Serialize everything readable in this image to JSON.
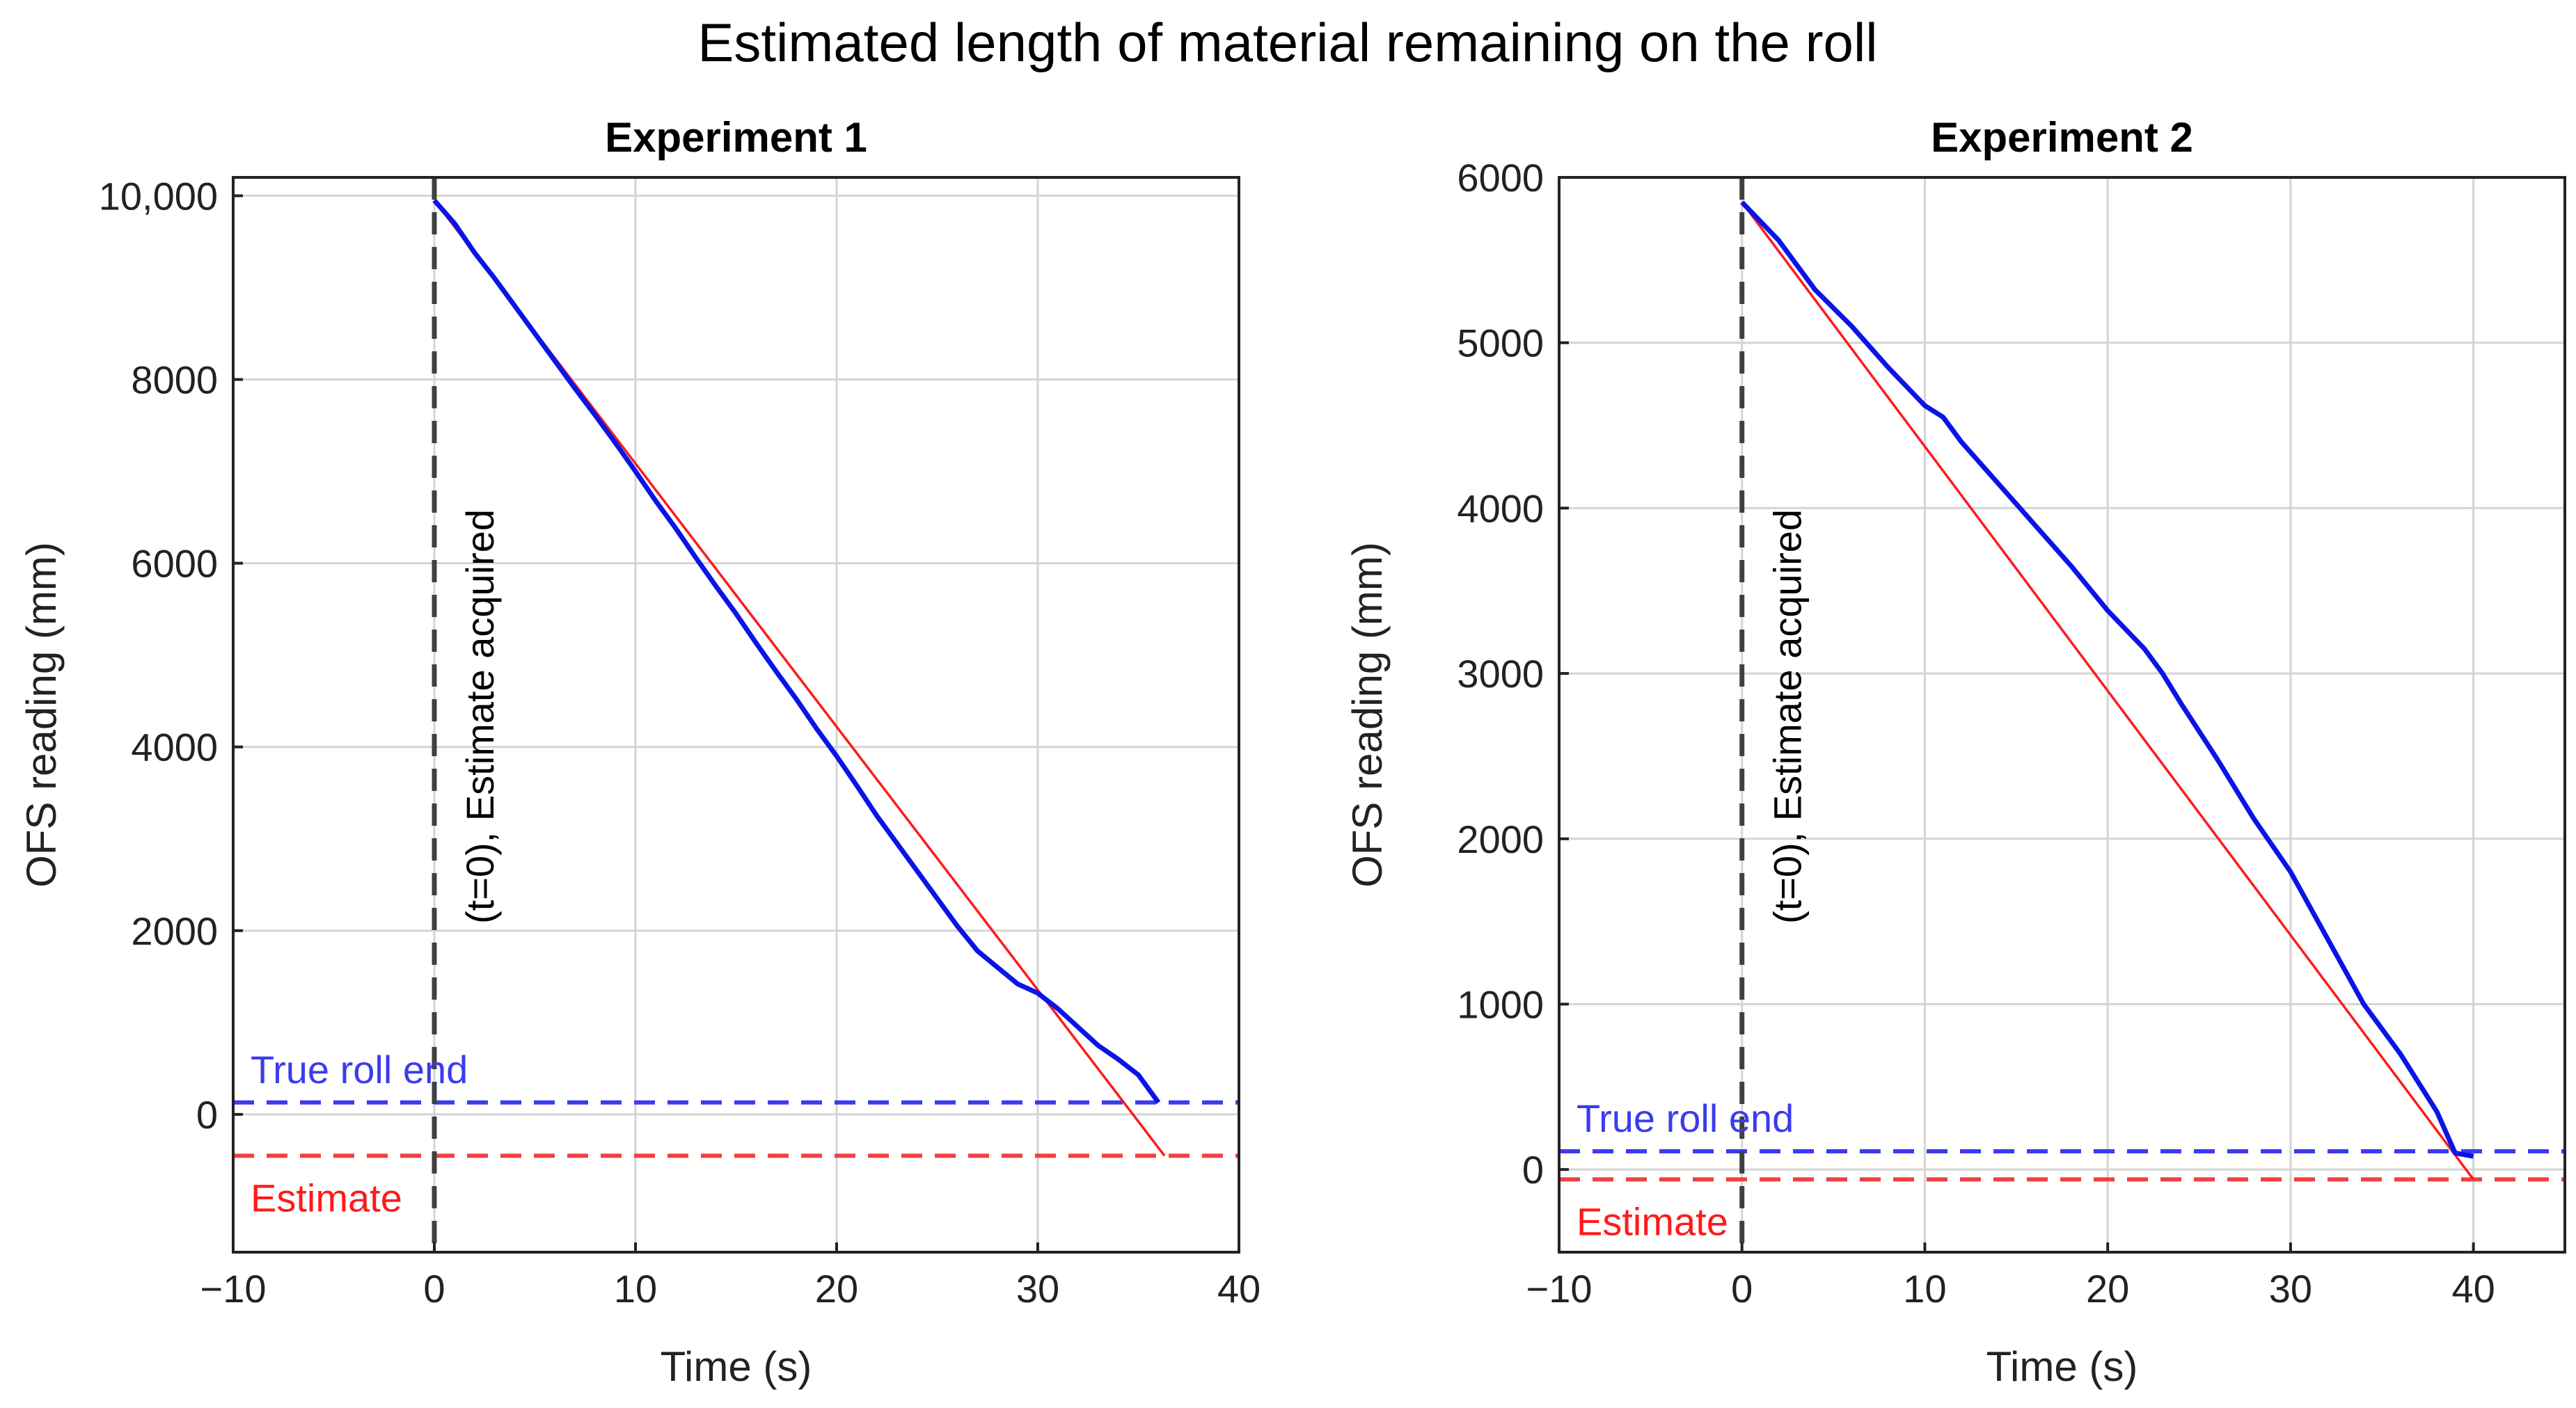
{
  "figure_title": "Estimated length of material remaining on the roll",
  "colors": {
    "measured": "#0a14e6",
    "estimate": "#ff1a1a",
    "true_roll_end": "#3b3bf0",
    "estimate_line": "#f04040",
    "marker": "#404040"
  },
  "chart_data": [
    {
      "type": "line",
      "title": "Experiment 1",
      "xlabel": "Time (s)",
      "ylabel": "OFS reading (mm)",
      "xlim": [
        -10,
        40
      ],
      "ylim": [
        -1500,
        10200
      ],
      "xticks": [
        -10,
        0,
        10,
        20,
        30,
        40
      ],
      "xtick_labels": [
        "−10",
        "0",
        "10",
        "20",
        "30",
        "40"
      ],
      "yticks": [
        0,
        2000,
        4000,
        6000,
        8000,
        10000
      ],
      "ytick_labels": [
        "0",
        "2000",
        "4000",
        "6000",
        "8000",
        "10,000"
      ],
      "grid": true,
      "series": [
        {
          "name": "OFS reading",
          "style": "solid",
          "x": [
            0,
            1,
            2,
            3,
            4,
            5,
            6,
            7,
            8,
            9,
            10,
            11,
            12,
            13,
            14,
            15,
            16,
            17,
            18,
            19,
            20,
            21,
            22,
            23,
            24,
            25,
            26,
            27,
            28,
            29,
            30,
            31,
            32,
            33,
            34,
            35,
            36
          ],
          "y": [
            9950,
            9700,
            9380,
            9100,
            8800,
            8500,
            8200,
            7900,
            7610,
            7310,
            7000,
            6680,
            6380,
            6060,
            5750,
            5450,
            5130,
            4820,
            4520,
            4200,
            3900,
            3580,
            3250,
            2950,
            2650,
            2350,
            2050,
            1780,
            1600,
            1420,
            1320,
            1150,
            950,
            750,
            600,
            430,
            130
          ]
        },
        {
          "name": "Estimate trajectory",
          "style": "solid-thin",
          "x": [
            0,
            36.3
          ],
          "y": [
            9950,
            -450
          ]
        },
        {
          "name": "True roll end",
          "style": "dashed",
          "y_constant": 130
        },
        {
          "name": "Estimate",
          "style": "dashed",
          "y_constant": -450
        }
      ],
      "annotations": {
        "marker_x": 0,
        "marker_label": "(t=0), Estimate acquired",
        "true_roll_end_label": "True roll end",
        "estimate_label": "Estimate"
      }
    },
    {
      "type": "line",
      "title": "Experiment 2",
      "xlabel": "Time (s)",
      "ylabel": "OFS reading (mm)",
      "xlim": [
        -10,
        45
      ],
      "ylim": [
        -500,
        6000
      ],
      "xticks": [
        -10,
        0,
        10,
        20,
        30,
        40
      ],
      "xtick_labels": [
        "−10",
        "0",
        "10",
        "20",
        "30",
        "40"
      ],
      "yticks": [
        0,
        1000,
        2000,
        3000,
        4000,
        5000,
        6000
      ],
      "ytick_labels": [
        "0",
        "1000",
        "2000",
        "3000",
        "4000",
        "5000",
        "6000"
      ],
      "grid": true,
      "series": [
        {
          "name": "OFS reading",
          "style": "solid",
          "x": [
            0,
            2,
            4,
            6,
            8,
            10,
            11,
            12,
            14,
            16,
            18,
            20,
            22,
            23,
            24,
            26,
            28,
            30,
            32,
            34,
            36,
            38,
            39,
            40
          ],
          "y": [
            5850,
            5620,
            5320,
            5100,
            4850,
            4620,
            4550,
            4400,
            4150,
            3900,
            3650,
            3380,
            3150,
            3000,
            2820,
            2480,
            2120,
            1800,
            1400,
            1000,
            700,
            350,
            100,
            80
          ]
        },
        {
          "name": "Estimate trajectory",
          "style": "solid-thin",
          "x": [
            0,
            40
          ],
          "y": [
            5850,
            -60
          ]
        },
        {
          "name": "True roll end",
          "style": "dashed",
          "y_constant": 110
        },
        {
          "name": "Estimate",
          "style": "dashed",
          "y_constant": -60
        }
      ],
      "annotations": {
        "marker_x": 0,
        "marker_label": "(t=0), Estimate acquired",
        "true_roll_end_label": "True roll end",
        "estimate_label": "Estimate"
      }
    }
  ]
}
